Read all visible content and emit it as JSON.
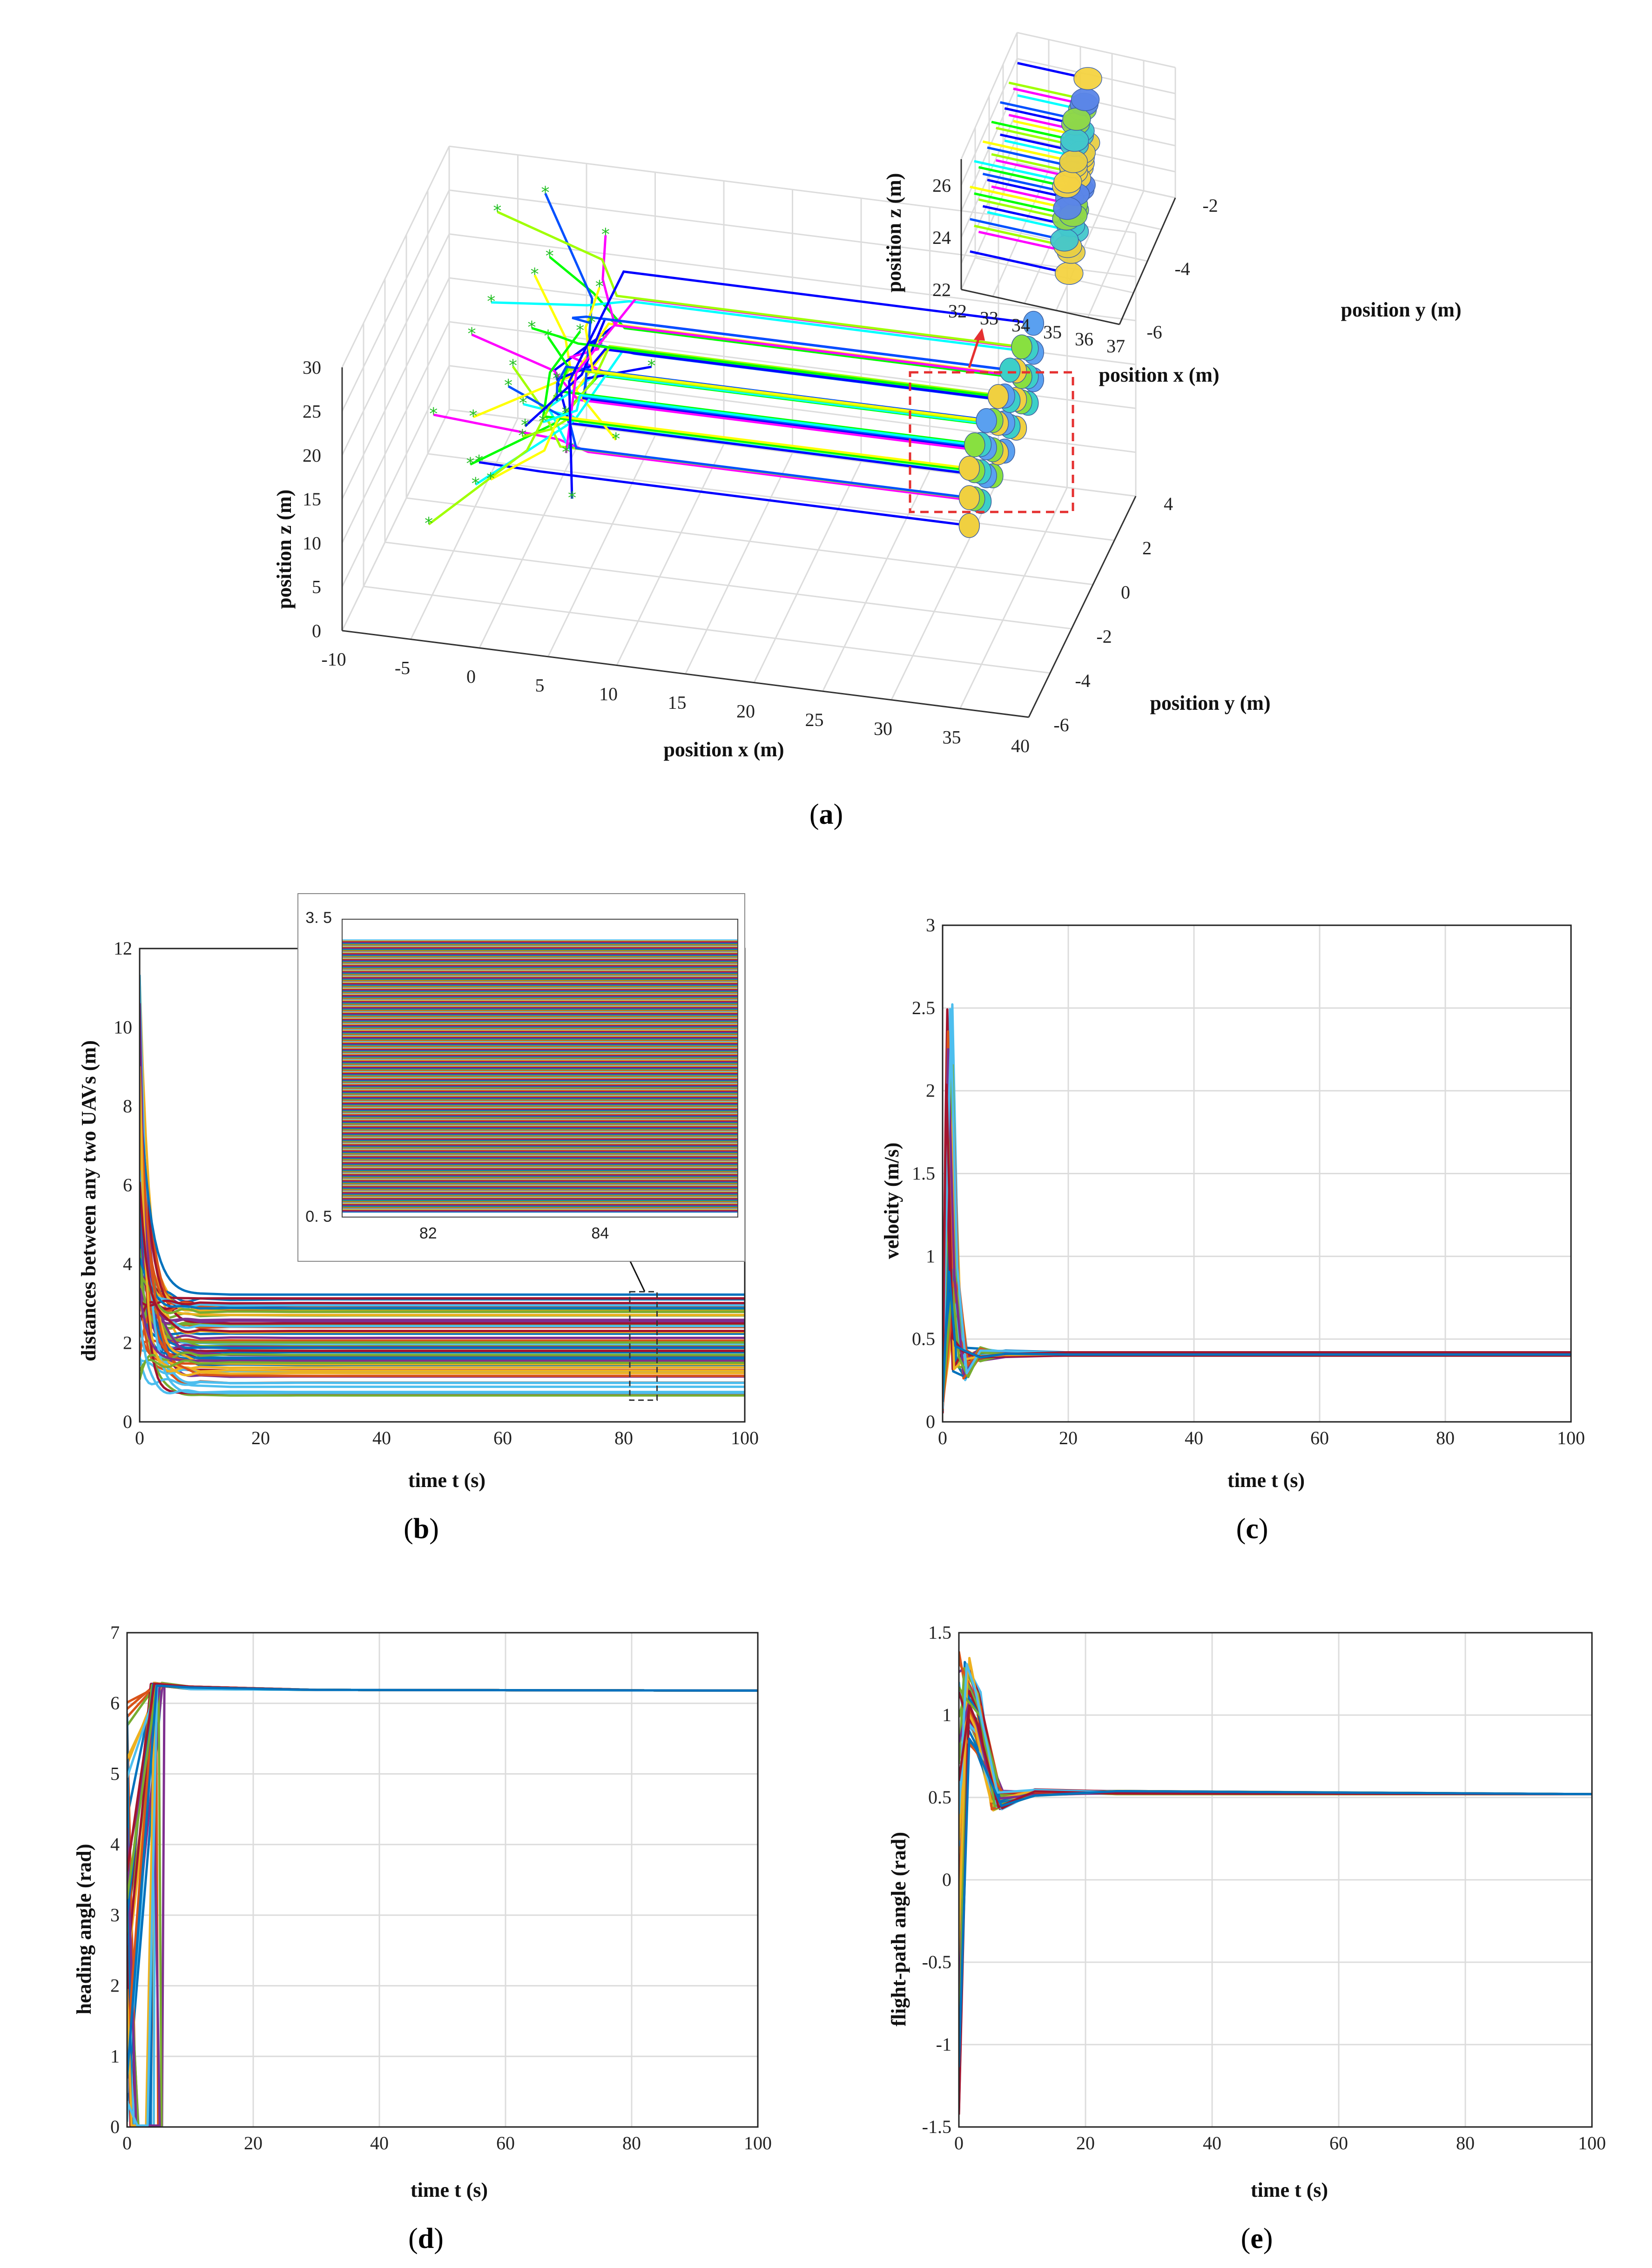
{
  "panel_labels": {
    "a": {
      "open": "(",
      "letter": "a",
      "close": ")"
    },
    "b": {
      "open": "(",
      "letter": "b",
      "close": ")"
    },
    "c": {
      "open": "(",
      "letter": "c",
      "close": ")"
    },
    "d": {
      "open": "(",
      "letter": "d",
      "close": ")"
    },
    "e": {
      "open": "(",
      "letter": "e",
      "close": ")"
    }
  },
  "chart_data": [
    {
      "id": "a",
      "type": "line",
      "title": "",
      "xlabel": "position x (m)",
      "ylabel": "position y (m)",
      "zlabel": "position z (m)",
      "xticks": [
        "-10",
        "-5",
        "0",
        "5",
        "10",
        "15",
        "20",
        "25",
        "30",
        "35",
        "40"
      ],
      "yticks": [
        "-6",
        "-4",
        "-2",
        "0",
        "2",
        "4"
      ],
      "zticks": [
        "0",
        "5",
        "10",
        "15",
        "20",
        "25",
        "30"
      ],
      "xlim": [
        -10,
        40
      ],
      "ylim": [
        -6,
        4
      ],
      "zlim": [
        0,
        30
      ],
      "description_series": "36 UAV trajectories starting at scattered positions (x≈-5..8) and converging into a parallel formation flying toward x≈35",
      "inset": {
        "xlabel": "position x (m)",
        "ylabel": "position y (m)",
        "zlabel": "position z (m)",
        "xticks": [
          "32",
          "33",
          "34",
          "35",
          "36",
          "37"
        ],
        "yticks": [
          "-6",
          "-4",
          "-2"
        ],
        "zticks": [
          "22",
          "24",
          "26"
        ],
        "xlim": [
          32,
          37
        ],
        "ylim": [
          -6,
          -2
        ],
        "zlim": [
          22,
          27
        ]
      }
    },
    {
      "id": "b",
      "type": "line",
      "xlabel": "time t (s)",
      "ylabel": "distances between any two UAVs (m)",
      "xlim": [
        0,
        100
      ],
      "ylim": [
        0,
        12
      ],
      "xticks": [
        "0",
        "20",
        "40",
        "60",
        "80",
        "100"
      ],
      "yticks": [
        "0",
        "2",
        "4",
        "6",
        "8",
        "10",
        "12"
      ],
      "series_summary": {
        "count": 630,
        "initial_max": 11.6,
        "final_range": [
          0.65,
          3.25
        ]
      },
      "inset": {
        "xlim": [
          81,
          85.6
        ],
        "ylim": [
          0.5,
          3.5
        ],
        "xticks": [
          "82",
          "84"
        ],
        "yticks": [
          "0. 5",
          "3. 5"
        ]
      }
    },
    {
      "id": "c",
      "type": "line",
      "xlabel": "time t (s)",
      "ylabel": "velocity (m/s)",
      "xlim": [
        0,
        100
      ],
      "ylim": [
        0,
        3
      ],
      "xticks": [
        "0",
        "20",
        "40",
        "60",
        "80",
        "100"
      ],
      "yticks": [
        "0",
        "0.5",
        "1",
        "1.5",
        "2",
        "2.5",
        "3"
      ],
      "series_summary": {
        "count": 36,
        "peak": 2.57,
        "peak_time": 1.2,
        "steady_state": 0.42
      }
    },
    {
      "id": "d",
      "type": "line",
      "xlabel": "time t (s)",
      "ylabel": "heading angle (rad)",
      "xlim": [
        0,
        100
      ],
      "ylim": [
        0,
        7
      ],
      "xticks": [
        "0",
        "20",
        "40",
        "60",
        "80",
        "100"
      ],
      "yticks": [
        "0",
        "1",
        "2",
        "3",
        "4",
        "5",
        "6",
        "7"
      ],
      "series_summary": {
        "count": 36,
        "steady_state": 6.18,
        "overshoot": 6.28
      }
    },
    {
      "id": "e",
      "type": "line",
      "xlabel": "time t (s)",
      "ylabel": "flight-path angle (rad)",
      "xlim": [
        0,
        100
      ],
      "ylim": [
        -1.5,
        1.5
      ],
      "xticks": [
        "0",
        "20",
        "40",
        "60",
        "80",
        "100"
      ],
      "yticks": [
        "-1.5",
        "-1",
        "-0.5",
        "0",
        "0.5",
        "1",
        "1.5"
      ],
      "series_summary": {
        "count": 36,
        "peak": 1.42,
        "trough": -1.45,
        "steady_state": 0.52
      }
    }
  ],
  "colors": {
    "series": [
      "#0072BD",
      "#D95319",
      "#EDB120",
      "#7E2F8E",
      "#77AC30",
      "#4DBEEE",
      "#A2142F"
    ],
    "traj3d": [
      "#0000ff",
      "#ff00ff",
      "#00ffff",
      "#ffff00",
      "#00ff00",
      "#0050ff",
      "#a0ff00"
    ],
    "zoom_box": "#e53030",
    "axis": "#222222"
  }
}
